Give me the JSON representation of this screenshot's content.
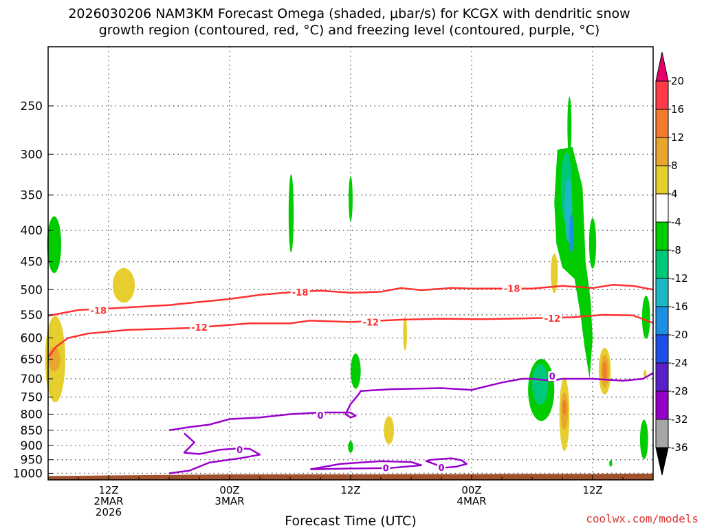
{
  "title_line1": "2026030206 NAM3KM Forecast Omega (shaded, μbar/s) for KCGX with dendritic snow",
  "title_line2": "growth region (contoured, red, °C) and freezing level (contoured, purple, °C)",
  "xlabel": "Forecast Time (UTC)",
  "watermark": "coolwx.com/models",
  "chart_data": {
    "type": "contour",
    "title": "2026030206 NAM3KM Forecast Omega (shaded, μbar/s) for KCGX with dendritic snow growth region (contoured, red, °C) and freezing level (contoured, purple, °C)",
    "xlabel": "Forecast Time (UTC)",
    "ylabel": "",
    "x_unit": "forecast hour from 2026030206",
    "xlim": [
      0,
      60
    ],
    "y_scale": "log",
    "ylim": [
      1025,
      200
    ],
    "yticks": [
      250,
      300,
      350,
      400,
      450,
      500,
      550,
      600,
      650,
      700,
      750,
      800,
      850,
      900,
      950,
      1000
    ],
    "xticks": [
      {
        "hour": 6,
        "lines": [
          "12Z",
          "2MAR",
          "2026"
        ]
      },
      {
        "hour": 18,
        "lines": [
          "00Z",
          "3MAR"
        ]
      },
      {
        "hour": 30,
        "lines": [
          "12Z"
        ]
      },
      {
        "hour": 42,
        "lines": [
          "00Z",
          "4MAR"
        ]
      },
      {
        "hour": 54,
        "lines": [
          "12Z"
        ]
      }
    ],
    "grid": true,
    "ground_color": "#a0522d",
    "ground_pressure": [
      [
        0,
        1010
      ],
      [
        6,
        1008
      ],
      [
        12,
        1006
      ],
      [
        18,
        1004
      ],
      [
        24,
        1004
      ],
      [
        30,
        1004
      ],
      [
        36,
        1003
      ],
      [
        42,
        1003
      ],
      [
        48,
        1002
      ],
      [
        54,
        1002
      ],
      [
        60,
        1001
      ]
    ],
    "colorbar": {
      "ticks": [
        20,
        16,
        12,
        8,
        4,
        -4,
        -8,
        -12,
        -16,
        -20,
        -24,
        -28,
        -32,
        -36
      ],
      "colors": [
        "#ff3a4a",
        "#f47a2c",
        "#e8a62c",
        "#e6ce2e",
        "#ffffff",
        "#00cc00",
        "#00c87a",
        "#1cb8c4",
        "#1b8fe3",
        "#1e4fe6",
        "#5a20c8",
        "#9400c8",
        "#a6a6a6"
      ],
      "top_arrow_color": "#e8006a",
      "bottom_arrow_color": "#000000"
    },
    "contours": [
      {
        "name": "-18",
        "color": "#ff3030",
        "points": [
          [
            0,
            552
          ],
          [
            3,
            540
          ],
          [
            6,
            537
          ],
          [
            12,
            530
          ],
          [
            18,
            518
          ],
          [
            21,
            510
          ],
          [
            24,
            505
          ],
          [
            27,
            502
          ],
          [
            30,
            506
          ],
          [
            33,
            504
          ],
          [
            35,
            497
          ],
          [
            37,
            501
          ],
          [
            40,
            497
          ],
          [
            42,
            498
          ],
          [
            44,
            498
          ],
          [
            48,
            498
          ],
          [
            51,
            493
          ],
          [
            54,
            497
          ],
          [
            56,
            491
          ],
          [
            58,
            493
          ],
          [
            60,
            500
          ]
        ],
        "labels": [
          [
            5,
            541
          ],
          [
            25,
            505
          ],
          [
            46,
            498
          ]
        ]
      },
      {
        "name": "-12",
        "color": "#ff3030",
        "points": [
          [
            0,
            645
          ],
          [
            0.8,
            620
          ],
          [
            2,
            600
          ],
          [
            4,
            590
          ],
          [
            8,
            582
          ],
          [
            14,
            578
          ],
          [
            20,
            568
          ],
          [
            24,
            568
          ],
          [
            26,
            562
          ],
          [
            30,
            565
          ],
          [
            33,
            562
          ],
          [
            35,
            560
          ],
          [
            39,
            558
          ],
          [
            43,
            559
          ],
          [
            48,
            557
          ],
          [
            52,
            555
          ],
          [
            55,
            550
          ],
          [
            58,
            551
          ],
          [
            60,
            567
          ]
        ],
        "labels": [
          [
            15,
            576
          ],
          [
            32,
            565
          ],
          [
            50,
            557
          ]
        ]
      },
      {
        "name": "0",
        "color": "#9900cc",
        "points": [
          [
            12,
            850
          ],
          [
            14,
            840
          ],
          [
            16,
            832
          ],
          [
            18,
            815
          ],
          [
            21,
            810
          ],
          [
            24,
            800
          ],
          [
            27,
            795
          ],
          [
            30,
            795
          ],
          [
            30.5,
            805
          ],
          [
            30,
            810
          ],
          [
            29.5,
            800
          ],
          [
            30,
            770
          ],
          [
            30.8,
            742
          ],
          [
            31,
            733
          ],
          [
            34,
            728
          ],
          [
            39,
            725
          ],
          [
            42,
            730
          ],
          [
            45,
            710
          ],
          [
            47,
            700
          ],
          [
            48,
            700
          ],
          [
            50,
            705
          ],
          [
            51,
            700
          ],
          [
            54,
            700
          ],
          [
            57,
            705
          ],
          [
            59,
            700
          ],
          [
            60,
            685
          ]
        ],
        "labels": [
          [
            27,
            803
          ],
          [
            50,
            693
          ]
        ]
      },
      {
        "name": "0",
        "color": "#9900cc",
        "points": [
          [
            13.5,
            860
          ],
          [
            14.5,
            890
          ],
          [
            13.5,
            925
          ],
          [
            15,
            930
          ],
          [
            17,
            915
          ],
          [
            19,
            910
          ],
          [
            20,
            912
          ],
          [
            21,
            932
          ],
          [
            19,
            945
          ],
          [
            16,
            960
          ],
          [
            14,
            990
          ],
          [
            12,
            1000
          ]
        ],
        "labels": [
          [
            19,
            915
          ]
        ]
      },
      {
        "name": "0",
        "color": "#9900cc",
        "points": [
          [
            26,
            985
          ],
          [
            29,
            965
          ],
          [
            33,
            955
          ],
          [
            36,
            958
          ],
          [
            37,
            970
          ],
          [
            34,
            980
          ],
          [
            30,
            982
          ],
          [
            26,
            985
          ]
        ],
        "labels": [
          [
            33.5,
            980
          ]
        ]
      },
      {
        "name": "0",
        "color": "#9900cc",
        "points": [
          [
            38,
            950
          ],
          [
            40,
            945
          ],
          [
            41,
            952
          ],
          [
            41.5,
            965
          ],
          [
            40.5,
            975
          ],
          [
            39,
            980
          ],
          [
            38.5,
            968
          ],
          [
            37.5,
            955
          ],
          [
            38,
            950
          ]
        ],
        "labels": [
          [
            39,
            978
          ]
        ]
      }
    ],
    "omega_regions": [
      {
        "label": "-8",
        "shape": "ellipse",
        "x": 0.6,
        "p": 422,
        "rx": 0.7,
        "rp": 45,
        "color": "#00cc00"
      },
      {
        "label": "4",
        "shape": "ellipse",
        "x": 0.7,
        "p": 650,
        "rx": 1.0,
        "rp": 105,
        "color": "#e6ce2e"
      },
      {
        "label": "8",
        "shape": "ellipse",
        "x": 0.6,
        "p": 650,
        "rx": 0.6,
        "rp": 30,
        "color": "#e8a62c"
      },
      {
        "label": "4",
        "shape": "ellipse",
        "x": 7.5,
        "p": 492,
        "rx": 1.1,
        "rp": 32,
        "color": "#e6ce2e"
      },
      {
        "label": "-4",
        "shape": "ellipse",
        "x": 24.1,
        "p": 375,
        "rx": 0.25,
        "rp": 55,
        "color": "#00cc00"
      },
      {
        "label": "-4",
        "shape": "ellipse",
        "x": 30.0,
        "p": 355,
        "rx": 0.2,
        "rp": 30,
        "color": "#00cc00"
      },
      {
        "label": "-4",
        "shape": "ellipse",
        "x": 30.5,
        "p": 680,
        "rx": 0.5,
        "rp": 45,
        "color": "#00cc00"
      },
      {
        "label": "-4",
        "shape": "ellipse",
        "x": 30.0,
        "p": 905,
        "rx": 0.25,
        "rp": 20,
        "color": "#00cc00"
      },
      {
        "label": "4",
        "shape": "ellipse",
        "x": 33.8,
        "p": 850,
        "rx": 0.5,
        "rp": 45,
        "color": "#e6ce2e"
      },
      {
        "label": "4",
        "shape": "ellipse",
        "x": 35.4,
        "p": 590,
        "rx": 0.2,
        "rp": 38,
        "color": "#e6ce2e"
      },
      {
        "label": "-4",
        "shape": "ellipse",
        "x": 48.9,
        "p": 730,
        "rx": 1.3,
        "rp": 85,
        "color": "#00cc00"
      },
      {
        "label": "-8",
        "shape": "ellipse",
        "x": 48.8,
        "p": 715,
        "rx": 0.8,
        "rp": 55,
        "color": "#00c87a"
      },
      {
        "label": "4",
        "shape": "ellipse",
        "x": 51.2,
        "p": 800,
        "rx": 0.5,
        "rp": 110,
        "color": "#e6ce2e"
      },
      {
        "label": "8",
        "shape": "ellipse",
        "x": 51.2,
        "p": 790,
        "rx": 0.35,
        "rp": 55,
        "color": "#e8a62c"
      },
      {
        "label": "12",
        "shape": "ellipse",
        "x": 51.2,
        "p": 780,
        "rx": 0.18,
        "rp": 22,
        "color": "#f47a2c"
      },
      {
        "label": "-4",
        "shape": "ellipse",
        "x": 51.7,
        "p": 270,
        "rx": 0.2,
        "rp": 30,
        "color": "#00cc00"
      },
      {
        "label": "-4",
        "shape": "polygon",
        "points": [
          [
            50.5,
            295
          ],
          [
            52.0,
            292
          ],
          [
            53.0,
            340
          ],
          [
            53.3,
            450
          ],
          [
            53.8,
            520
          ],
          [
            54.0,
            600
          ],
          [
            53.7,
            700
          ],
          [
            53.2,
            620
          ],
          [
            52.8,
            550
          ],
          [
            52.2,
            480
          ],
          [
            51.0,
            460
          ],
          [
            50.4,
            420
          ],
          [
            50.2,
            360
          ]
        ],
        "color": "#00cc00"
      },
      {
        "label": "-8",
        "shape": "ellipse",
        "x": 51.4,
        "p": 340,
        "rx": 0.55,
        "rp": 45,
        "color": "#00c87a"
      },
      {
        "label": "-12",
        "shape": "ellipse",
        "x": 51.6,
        "p": 370,
        "rx": 0.38,
        "rp": 45,
        "color": "#1cb8c4"
      },
      {
        "label": "-16",
        "shape": "ellipse",
        "x": 51.9,
        "p": 405,
        "rx": 0.2,
        "rp": 30,
        "color": "#1b8fe3"
      },
      {
        "label": "-4",
        "shape": "ellipse",
        "x": 54.0,
        "p": 420,
        "rx": 0.35,
        "rp": 40,
        "color": "#00cc00"
      },
      {
        "label": "4",
        "shape": "ellipse",
        "x": 50.2,
        "p": 470,
        "rx": 0.35,
        "rp": 35,
        "color": "#e6ce2e"
      },
      {
        "label": "4",
        "shape": "ellipse",
        "x": 55.2,
        "p": 680,
        "rx": 0.6,
        "rp": 60,
        "color": "#e6ce2e"
      },
      {
        "label": "8",
        "shape": "ellipse",
        "x": 55.2,
        "p": 680,
        "rx": 0.4,
        "rp": 42,
        "color": "#e8a62c"
      },
      {
        "label": "12",
        "shape": "ellipse",
        "x": 55.2,
        "p": 680,
        "rx": 0.2,
        "rp": 25,
        "color": "#f47a2c"
      },
      {
        "label": "4",
        "shape": "ellipse",
        "x": 59.2,
        "p": 688,
        "rx": 0.15,
        "rp": 12,
        "color": "#e6ce2e"
      },
      {
        "label": "-4",
        "shape": "ellipse",
        "x": 59.3,
        "p": 555,
        "rx": 0.4,
        "rp": 45,
        "color": "#00cc00"
      },
      {
        "label": "-4",
        "shape": "ellipse",
        "x": 59.1,
        "p": 880,
        "rx": 0.4,
        "rp": 65,
        "color": "#00cc00"
      },
      {
        "label": "-4",
        "shape": "ellipse",
        "x": 55.8,
        "p": 963,
        "rx": 0.15,
        "rp": 12,
        "color": "#00cc00"
      }
    ]
  }
}
